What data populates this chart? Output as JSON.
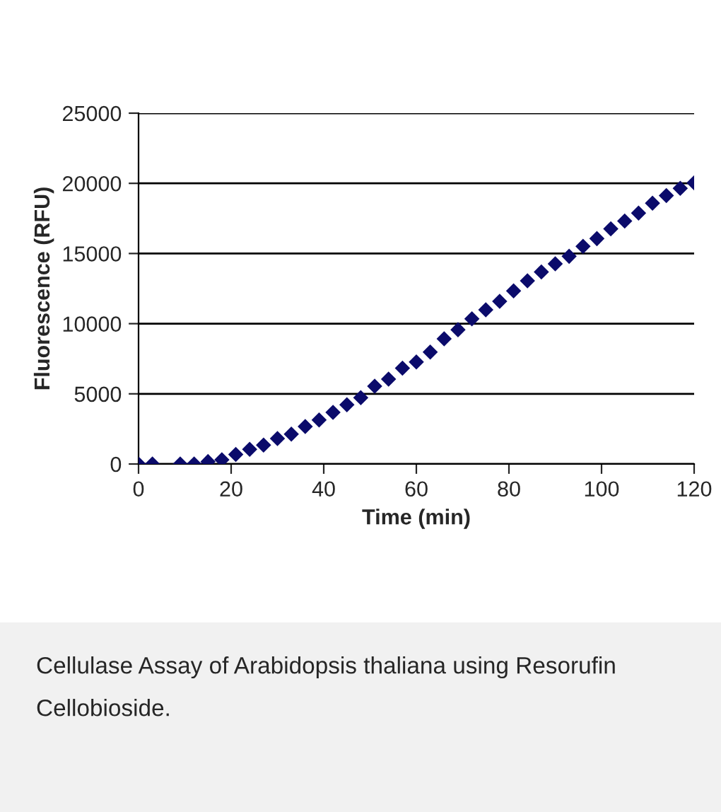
{
  "chart_data": {
    "type": "scatter",
    "xlabel": "Time (min)",
    "ylabel": "Fluorescence (RFU)",
    "annotations": [
      "Cellulase Assay of Arabidopsis thaliana using Resorufin Cellobioside."
    ],
    "x": [
      0,
      3,
      9,
      12,
      15,
      18,
      21,
      24,
      27,
      30,
      33,
      36,
      39,
      42,
      45,
      48,
      51,
      54,
      57,
      60,
      63,
      66,
      69,
      72,
      75,
      78,
      81,
      84,
      87,
      90,
      93,
      96,
      99,
      102,
      105,
      108,
      111,
      114,
      117,
      120
    ],
    "series": [
      {
        "color": "#0b0b6b",
        "values": [
          0,
          0,
          0,
          0,
          170,
          300,
          680,
          1050,
          1350,
          1820,
          2130,
          2670,
          3140,
          3680,
          4220,
          4730,
          5540,
          6050,
          6830,
          7270,
          7980,
          8920,
          9570,
          10340,
          10990,
          11590,
          12340,
          13050,
          13690,
          14260,
          14800,
          15510,
          16060,
          16760,
          17310,
          17880,
          18590,
          19130,
          19640,
          20040
        ]
      }
    ],
    "xlim": [
      0,
      120
    ],
    "xticks": [
      0,
      20,
      40,
      60,
      80,
      100,
      120
    ],
    "ylim": [
      0,
      25000
    ],
    "yticks": [
      0,
      5000,
      10000,
      15000,
      20000,
      25000
    ],
    "grid": "y",
    "marker": "diamond",
    "legend": false
  }
}
